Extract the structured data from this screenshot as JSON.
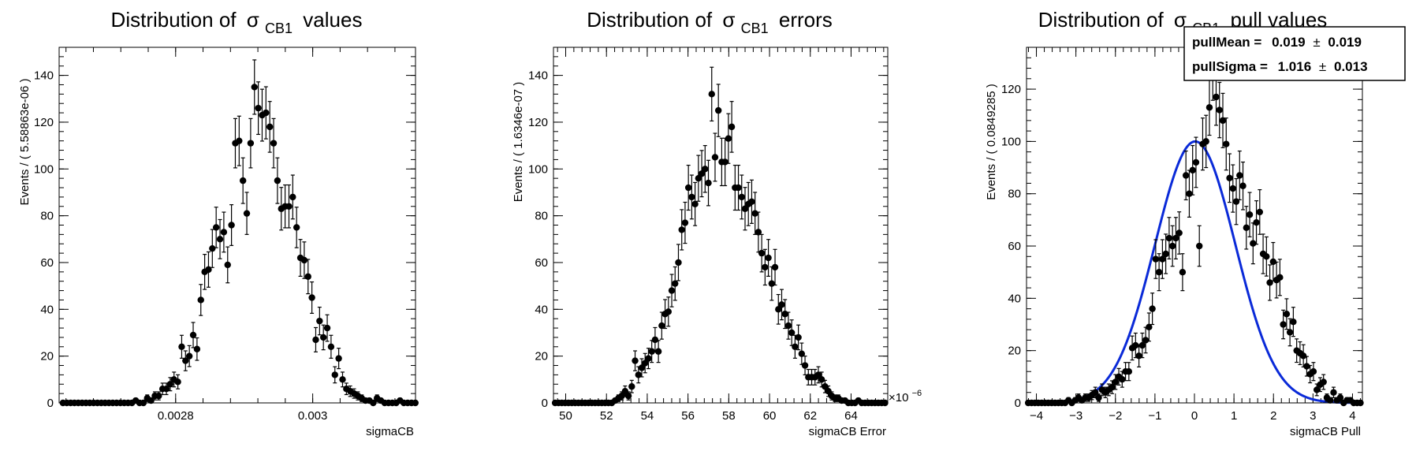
{
  "panels": [
    {
      "title_prefix": "Distribution of",
      "title_symbol": "σ",
      "title_sub": "CB1",
      "title_suffix": "values",
      "chart_data": {
        "type": "scatter",
        "title": "Distribution of σCB1 values",
        "xlabel": "sigmaCB",
        "ylabel": "Events / ( 5.58863e-06 )",
        "xlim": [
          0.00263,
          0.00315
        ],
        "ylim": [
          0,
          152
        ],
        "xticks": [
          0.0028,
          0.003
        ],
        "xtick_labels": [
          "0.0028",
          "0.003"
        ],
        "yticks": [
          0,
          20,
          40,
          60,
          80,
          100,
          120,
          140
        ],
        "bin_start": 0.0026328,
        "bin_width": 5.58863e-06,
        "y": [
          0,
          0,
          0,
          0,
          0,
          0,
          0,
          0,
          0,
          0,
          0,
          0,
          0,
          0,
          0,
          0,
          0,
          0,
          0,
          1,
          0,
          0,
          2,
          1,
          3,
          3,
          6,
          6,
          8,
          10,
          9,
          24,
          18,
          20,
          29,
          23,
          44,
          56,
          57,
          66,
          75,
          70,
          73,
          59,
          76,
          111,
          112,
          95,
          81,
          111,
          135,
          126,
          123,
          124,
          118,
          111,
          95,
          83,
          84,
          84,
          88,
          75,
          62,
          61,
          54,
          45,
          27,
          35,
          28,
          32,
          24,
          12,
          19,
          10,
          6,
          5,
          4,
          3,
          2,
          1,
          1,
          0,
          2,
          1,
          0,
          0,
          0,
          0,
          1,
          0,
          0,
          0,
          0,
          0,
          0,
          0,
          0,
          0,
          0,
          0
        ]
      }
    },
    {
      "title_prefix": "Distribution of ",
      "title_symbol": "σ",
      "title_sub": "CB1",
      "title_suffix": "errors",
      "chart_data": {
        "type": "scatter",
        "title": "Distribution of σCB1 errors",
        "xlabel": "sigmaCB Error",
        "ylabel": "Events / ( 1.6346e-07 )",
        "x_multiplier": "×10",
        "x_multiplier_exp": "−6",
        "xlim": [
          49.4,
          65.8
        ],
        "ylim": [
          0,
          152
        ],
        "xticks": [
          50,
          52,
          54,
          56,
          58,
          60,
          62,
          64
        ],
        "yticks": [
          0,
          20,
          40,
          60,
          80,
          100,
          120,
          140
        ],
        "bin_start": 49.4,
        "bin_width": 0.16346,
        "y": [
          0,
          0,
          0,
          0,
          0,
          0,
          0,
          0,
          0,
          0,
          0,
          0,
          0,
          0,
          0,
          0,
          0,
          0,
          1,
          2,
          3,
          5,
          3,
          7,
          18,
          12,
          15,
          17,
          19,
          22,
          27,
          22,
          33,
          38,
          39,
          48,
          51,
          60,
          74,
          77,
          92,
          88,
          85,
          96,
          98,
          100,
          94,
          132,
          105,
          125,
          103,
          103,
          113,
          118,
          92,
          92,
          88,
          83,
          85,
          86,
          81,
          73,
          64,
          58,
          62,
          51,
          58,
          40,
          42,
          38,
          33,
          30,
          24,
          28,
          21,
          16,
          11,
          11,
          11,
          12,
          10,
          7,
          5,
          3,
          2,
          2,
          1,
          1,
          0,
          0,
          0,
          1,
          0,
          0,
          0,
          0,
          0,
          0,
          0,
          0
        ]
      }
    },
    {
      "title_prefix": "Distribution of",
      "title_symbol": "σ",
      "title_sub": "CB1",
      "title_suffix": "pull values",
      "stats": {
        "line1_label": "pullMean =",
        "line1_value": "0.019",
        "line1_pm": "±",
        "line1_err": "0.019",
        "line2_label": "pullSigma =",
        "line2_value": "1.016",
        "line2_pm": "±",
        "line2_err": "0.013"
      },
      "chart_data": {
        "type": "scatter",
        "title": "Distribution of σCB1 pull values",
        "xlabel": "sigmaCB Pull",
        "ylabel": "Events / ( 0.0849285 )",
        "xlim": [
          -4.25,
          4.25
        ],
        "ylim": [
          0,
          136
        ],
        "xticks": [
          -4,
          -3,
          -2,
          -1,
          0,
          1,
          2,
          3,
          4
        ],
        "yticks": [
          0,
          20,
          40,
          60,
          80,
          100,
          120
        ],
        "bin_start": -4.25,
        "bin_width": 0.0849285,
        "y": [
          0,
          0,
          0,
          0,
          0,
          0,
          0,
          0,
          0,
          0,
          0,
          0,
          1,
          0,
          1,
          2,
          1,
          2,
          2,
          3,
          4,
          2,
          5,
          4,
          5,
          6,
          8,
          10,
          9,
          12,
          12,
          21,
          22,
          18,
          22,
          24,
          29,
          36,
          55,
          50,
          55,
          57,
          63,
          60,
          63,
          65,
          50,
          87,
          80,
          89,
          92,
          60,
          99,
          100,
          113,
          127,
          117,
          112,
          108,
          99,
          86,
          82,
          77,
          87,
          83,
          67,
          72,
          61,
          69,
          73,
          57,
          56,
          46,
          54,
          47,
          48,
          30,
          34,
          27,
          31,
          20,
          19,
          18,
          14,
          11,
          12,
          5,
          7,
          8,
          2,
          1,
          4,
          1,
          2,
          0,
          1,
          1,
          0,
          0,
          0
        ],
        "fit": {
          "mean": 0.019,
          "sigma": 1.016,
          "peak": 100
        }
      }
    }
  ]
}
